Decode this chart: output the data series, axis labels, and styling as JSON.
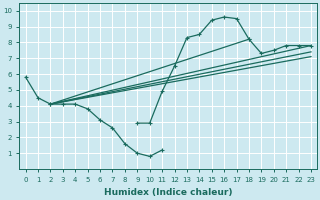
{
  "xlabel": "Humidex (Indice chaleur)",
  "bg_color": "#cde9f0",
  "line_color": "#1a6b5e",
  "grid_color": "#ffffff",
  "xlim": [
    -0.5,
    23.5
  ],
  "ylim": [
    0,
    10.5
  ],
  "curve1_x": [
    0,
    1,
    2,
    3,
    4,
    5,
    6,
    7,
    8,
    9,
    10,
    11
  ],
  "curve1_y": [
    5.8,
    4.5,
    4.1,
    4.1,
    4.1,
    3.8,
    3.1,
    2.6,
    1.6,
    1.0,
    0.8,
    1.2
  ],
  "curve2_x": [
    9,
    10,
    11,
    12,
    13,
    14,
    15,
    16,
    17,
    18
  ],
  "curve2_y": [
    2.9,
    2.9,
    4.9,
    6.5,
    8.3,
    8.5,
    9.4,
    9.6,
    9.5,
    8.2
  ],
  "curve3_x": [
    2,
    18,
    19,
    20,
    21,
    22,
    23
  ],
  "curve3_y": [
    4.1,
    8.2,
    7.3,
    7.5,
    7.8,
    7.8,
    7.8
  ],
  "line1_x": [
    2,
    23
  ],
  "line1_y": [
    4.1,
    7.8
  ],
  "line2_x": [
    2,
    23
  ],
  "line2_y": [
    4.1,
    7.4
  ],
  "line3_x": [
    2,
    23
  ],
  "line3_y": [
    4.1,
    7.1
  ],
  "xlabel_fontsize": 6.5,
  "tick_fontsize": 5.0
}
